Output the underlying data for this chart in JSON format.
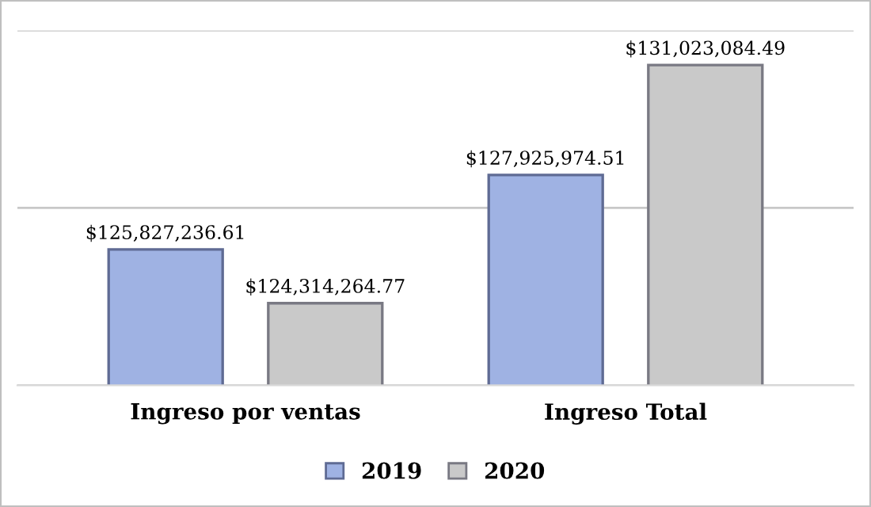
{
  "chart_data": {
    "type": "bar",
    "categories": [
      "Ingreso por ventas",
      "Ingreso Total"
    ],
    "series": [
      {
        "name": "2019",
        "color": "#9fb2e3",
        "values": [
          125827236.61,
          127925974.51
        ],
        "value_labels": [
          "$125,827,236.61",
          "$127,925,974.51"
        ]
      },
      {
        "name": "2020",
        "color": "#c9c9c9",
        "values": [
          124314264.77,
          131023084.49
        ],
        "value_labels": [
          "$124,314,264.77",
          "$131,023,084.49"
        ]
      }
    ],
    "ylim": [
      122000000,
      132000000
    ],
    "yticks": [
      {
        "value": 122000000,
        "label": null
      },
      {
        "value": 127000000,
        "label": null
      },
      {
        "value": 132000000,
        "label": null
      }
    ],
    "tick_labels": "x",
    "grid": "y",
    "legend": "bottom"
  }
}
